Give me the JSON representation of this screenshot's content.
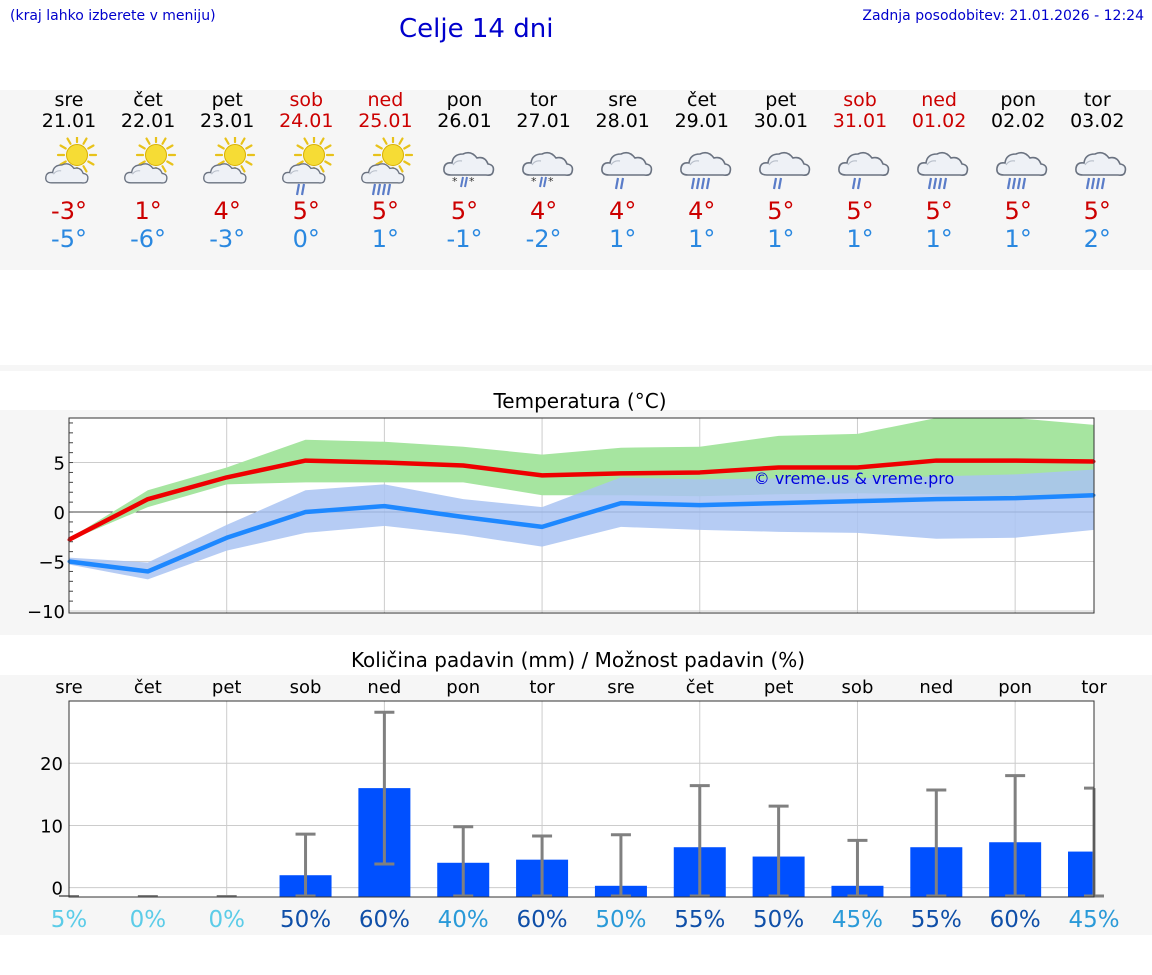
{
  "header": {
    "hint": "(kraj lahko izberete v meniju)",
    "title": "Celje 14 dni",
    "updated": "Zadnja posodobitev: 21.01.2026 - 12:24"
  },
  "days": [
    {
      "name": "sre",
      "date": "21.01",
      "weekend": false,
      "icon": "sun-cloud-icon",
      "tmax": "-3°",
      "tmin": "-5°"
    },
    {
      "name": "čet",
      "date": "22.01",
      "weekend": false,
      "icon": "sun-cloud-icon",
      "tmax": "1°",
      "tmin": "-6°"
    },
    {
      "name": "pet",
      "date": "23.01",
      "weekend": false,
      "icon": "sun-cloud-icon",
      "tmax": "4°",
      "tmin": "-3°"
    },
    {
      "name": "sob",
      "date": "24.01",
      "weekend": true,
      "icon": "sun-cloud-rain-icon",
      "tmax": "5°",
      "tmin": "0°"
    },
    {
      "name": "ned",
      "date": "25.01",
      "weekend": true,
      "icon": "sun-cloud-heavy-rain-icon",
      "tmax": "5°",
      "tmin": "1°"
    },
    {
      "name": "pon",
      "date": "26.01",
      "weekend": false,
      "icon": "cloud-sleet-icon",
      "tmax": "5°",
      "tmin": "-1°"
    },
    {
      "name": "tor",
      "date": "27.01",
      "weekend": false,
      "icon": "cloud-sleet-icon",
      "tmax": "4°",
      "tmin": "-2°"
    },
    {
      "name": "sre",
      "date": "28.01",
      "weekend": false,
      "icon": "cloud-rain-icon",
      "tmax": "4°",
      "tmin": "1°"
    },
    {
      "name": "čet",
      "date": "29.01",
      "weekend": false,
      "icon": "cloud-heavy-rain-icon",
      "tmax": "4°",
      "tmin": "1°"
    },
    {
      "name": "pet",
      "date": "30.01",
      "weekend": false,
      "icon": "cloud-rain-icon",
      "tmax": "5°",
      "tmin": "1°"
    },
    {
      "name": "sob",
      "date": "31.01",
      "weekend": true,
      "icon": "cloud-rain-icon",
      "tmax": "5°",
      "tmin": "1°"
    },
    {
      "name": "ned",
      "date": "01.02",
      "weekend": true,
      "icon": "cloud-heavy-rain-icon",
      "tmax": "5°",
      "tmin": "1°"
    },
    {
      "name": "pon",
      "date": "02.02",
      "weekend": false,
      "icon": "cloud-heavy-rain-icon",
      "tmax": "5°",
      "tmin": "1°"
    },
    {
      "name": "tor",
      "date": "03.02",
      "weekend": false,
      "icon": "cloud-heavy-rain-icon",
      "tmax": "5°",
      "tmin": "2°"
    }
  ],
  "colors": {
    "max_line": "#ee0000",
    "min_line": "#1e88ff",
    "max_band": "#a6e5a0",
    "min_band": "#a9c3f2",
    "overlap_band": "#78c4a6",
    "bar": "#0050ff",
    "whisker": "#808080",
    "grid": "#cccccc",
    "prob_low": "#5ccce8",
    "prob_mid": "#2a9ad8",
    "prob_high": "#0f4fa8",
    "watermark": "#0000dd"
  },
  "chart_data": [
    {
      "type": "line",
      "title": "Temperatura (°C)",
      "watermark": "© vreme.us & vreme.pro",
      "ylim": [
        -10.2,
        9.5
      ],
      "yticks": [
        -10,
        -5,
        0,
        5
      ],
      "ytick_labels": [
        "−10",
        "−5",
        "0",
        "5"
      ],
      "xlim": [
        0,
        13
      ],
      "series": [
        {
          "name": "max",
          "x": [
            0,
            1,
            2,
            3,
            4,
            5,
            6,
            7,
            8,
            9,
            10,
            11,
            12,
            13
          ],
          "values": [
            -2.8,
            1.3,
            3.5,
            5.2,
            5.0,
            4.7,
            3.7,
            3.9,
            4.0,
            4.5,
            4.5,
            5.2,
            5.2,
            5.1
          ]
        },
        {
          "name": "min",
          "x": [
            0,
            1,
            2,
            3,
            4,
            5,
            6,
            7,
            8,
            9,
            10,
            11,
            12,
            13
          ],
          "values": [
            -5.0,
            -6.0,
            -2.6,
            0.0,
            0.6,
            -0.5,
            -1.5,
            0.9,
            0.7,
            0.9,
            1.1,
            1.3,
            1.4,
            1.7
          ]
        }
      ],
      "bands": [
        {
          "name": "max-range",
          "low": [
            -2.9,
            0.5,
            2.8,
            3.0,
            3.0,
            3.0,
            1.7,
            1.7,
            1.6,
            1.8,
            1.9,
            1.8,
            1.6,
            1.8
          ],
          "high": [
            -2.7,
            2.2,
            4.5,
            7.3,
            7.1,
            6.6,
            5.8,
            6.5,
            6.6,
            7.7,
            7.9,
            9.5,
            9.5,
            8.8
          ]
        },
        {
          "name": "min-range",
          "low": [
            -5.3,
            -6.8,
            -3.9,
            -2.1,
            -1.4,
            -2.3,
            -3.5,
            -1.5,
            -1.8,
            -2.0,
            -2.1,
            -2.7,
            -2.6,
            -1.8
          ],
          "high": [
            -4.6,
            -5.1,
            -1.3,
            2.2,
            2.8,
            1.3,
            0.5,
            3.5,
            3.3,
            3.4,
            3.4,
            3.6,
            3.8,
            4.3
          ]
        }
      ]
    },
    {
      "type": "bar",
      "title": "Količina padavin (mm) / Možnost padavin (%)",
      "categories": [
        "sre",
        "čet",
        "pet",
        "sob",
        "ned",
        "pon",
        "tor",
        "sre",
        "čet",
        "pet",
        "sob",
        "ned",
        "pon",
        "tor"
      ],
      "ylim": [
        -1.5,
        30
      ],
      "yticks": [
        0,
        10,
        20
      ],
      "ytick_labels": [
        "0",
        "10",
        "20"
      ],
      "values": [
        0,
        0,
        0,
        2.0,
        16.0,
        4.0,
        4.5,
        0.3,
        6.5,
        5.0,
        0.3,
        6.5,
        7.3,
        5.8
      ],
      "error_low": [
        0,
        0,
        0,
        0,
        3.8,
        0,
        0,
        0,
        0,
        0,
        0,
        0,
        0,
        0
      ],
      "error_high": [
        0,
        0,
        0,
        8.6,
        28.2,
        9.8,
        8.3,
        8.5,
        16.4,
        13.1,
        7.6,
        15.7,
        18.0,
        16.0
      ],
      "probabilities": [
        "5%",
        "0%",
        "0%",
        "50%",
        "60%",
        "40%",
        "60%",
        "50%",
        "55%",
        "50%",
        "45%",
        "55%",
        "60%",
        "45%"
      ],
      "probability_levels": [
        "low",
        "low",
        "low",
        "high",
        "high",
        "mid",
        "high",
        "mid",
        "high",
        "high",
        "mid",
        "high",
        "high",
        "mid"
      ]
    }
  ]
}
